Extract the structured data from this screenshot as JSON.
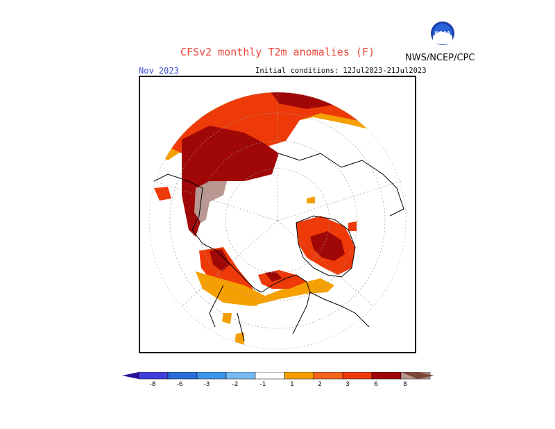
{
  "header": {
    "title": "CFSv2 monthly T2m anomalies (F)",
    "agency": "NWS/NCEP/CPC",
    "logo_text": "NOAA",
    "valid_month": "Nov 2023",
    "initial_conditions": "Initial conditions: 12Jul2023-21Jul2023"
  },
  "colors": {
    "cold_extreme": "#2a0f9a",
    "c1": "#4040d8",
    "c2": "#2a6fd6",
    "c3": "#3c94ea",
    "c4": "#78baf2",
    "neutral": "#ffffff",
    "w1": "#f5a000",
    "w2": "#f4641c",
    "w3": "#ee3a08",
    "w4": "#a00808",
    "w5": "#b89891",
    "warm_extreme": "#7a4638"
  },
  "colorbar": {
    "labels": [
      "-8",
      "-6",
      "-3",
      "-2",
      "-1",
      "1",
      "2",
      "3",
      "6",
      "8"
    ]
  }
}
